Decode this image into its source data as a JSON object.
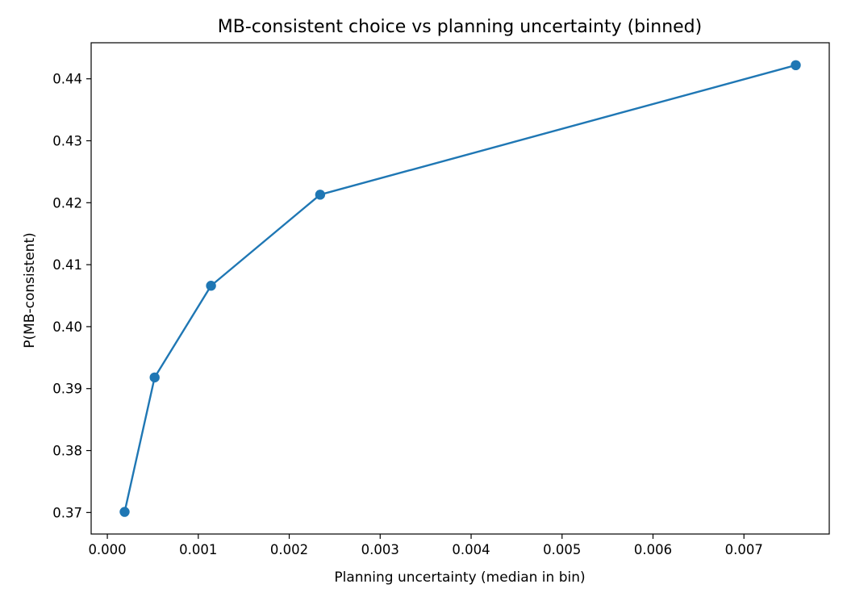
{
  "chart_data": {
    "type": "line",
    "title": "MB-consistent choice vs planning uncertainty (binned)",
    "xlabel": "Planning uncertainty (median in bin)",
    "ylabel": "P(MB-consistent)",
    "series": [
      {
        "x": [
          0.00019,
          0.00052,
          0.00114,
          0.00234,
          0.00757
        ],
        "y": [
          0.3701,
          0.3918,
          0.4066,
          0.4213,
          0.4422
        ]
      }
    ],
    "x_ticks": [
      "0.000",
      "0.001",
      "0.002",
      "0.003",
      "0.004",
      "0.005",
      "0.006",
      "0.007"
    ],
    "x_tick_values": [
      0.0,
      0.001,
      0.002,
      0.003,
      0.004,
      0.005,
      0.006,
      0.007
    ],
    "y_ticks": [
      "0.37",
      "0.38",
      "0.39",
      "0.40",
      "0.41",
      "0.42",
      "0.43",
      "0.44"
    ],
    "y_tick_values": [
      0.37,
      0.38,
      0.39,
      0.4,
      0.41,
      0.42,
      0.43,
      0.44
    ],
    "xlim": [
      -0.000178,
      0.007938
    ],
    "ylim": [
      0.36653,
      0.44582
    ],
    "grid": false,
    "legend": "none",
    "line_color": "#1f77b4",
    "marker": "circle"
  }
}
